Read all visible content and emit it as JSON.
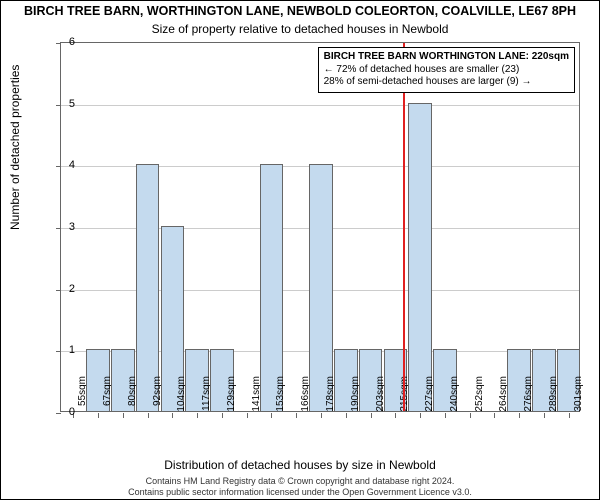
{
  "chart": {
    "type": "histogram",
    "title": "BIRCH TREE BARN, WORTHINGTON LANE, NEWBOLD COLEORTON, COALVILLE, LE67 8PH",
    "subtitle": "Size of property relative to detached houses in Newbold",
    "y_label": "Number of detached properties",
    "x_label": "Distribution of detached houses by size in Newbold",
    "ylim": [
      0,
      6
    ],
    "ytick_step": 1,
    "background_color": "#ffffff",
    "grid_color": "#cccccc",
    "border_color": "#666666",
    "bar_color": "#c4daee",
    "bar_border_color": "#666666",
    "marker_color": "#e02020",
    "marker_x_index": 13.3,
    "title_fontsize": 12.5,
    "subtitle_fontsize": 12,
    "axis_label_fontsize": 12,
    "tick_fontsize": 11,
    "x_categories": [
      "55sqm",
      "67sqm",
      "80sqm",
      "92sqm",
      "104sqm",
      "117sqm",
      "129sqm",
      "141sqm",
      "153sqm",
      "166sqm",
      "178sqm",
      "190sqm",
      "203sqm",
      "215sqm",
      "227sqm",
      "240sqm",
      "252sqm",
      "264sqm",
      "276sqm",
      "289sqm",
      "301sqm"
    ],
    "values": [
      0,
      1,
      1,
      4,
      3,
      1,
      1,
      0,
      4,
      0,
      4,
      1,
      1,
      1,
      5,
      1,
      0,
      0,
      1,
      1,
      1
    ],
    "bar_width": 0.95,
    "annotation": {
      "line1": "BIRCH TREE BARN WORTHINGTON LANE: 220sqm",
      "line2": "← 72% of detached houses are smaller (23)",
      "line3": "28% of semi-detached houses are larger (9) →"
    },
    "footer": {
      "line1": "Contains HM Land Registry data © Crown copyright and database right 2024.",
      "line2": "Contains public sector information licensed under the Open Government Licence v3.0."
    }
  }
}
